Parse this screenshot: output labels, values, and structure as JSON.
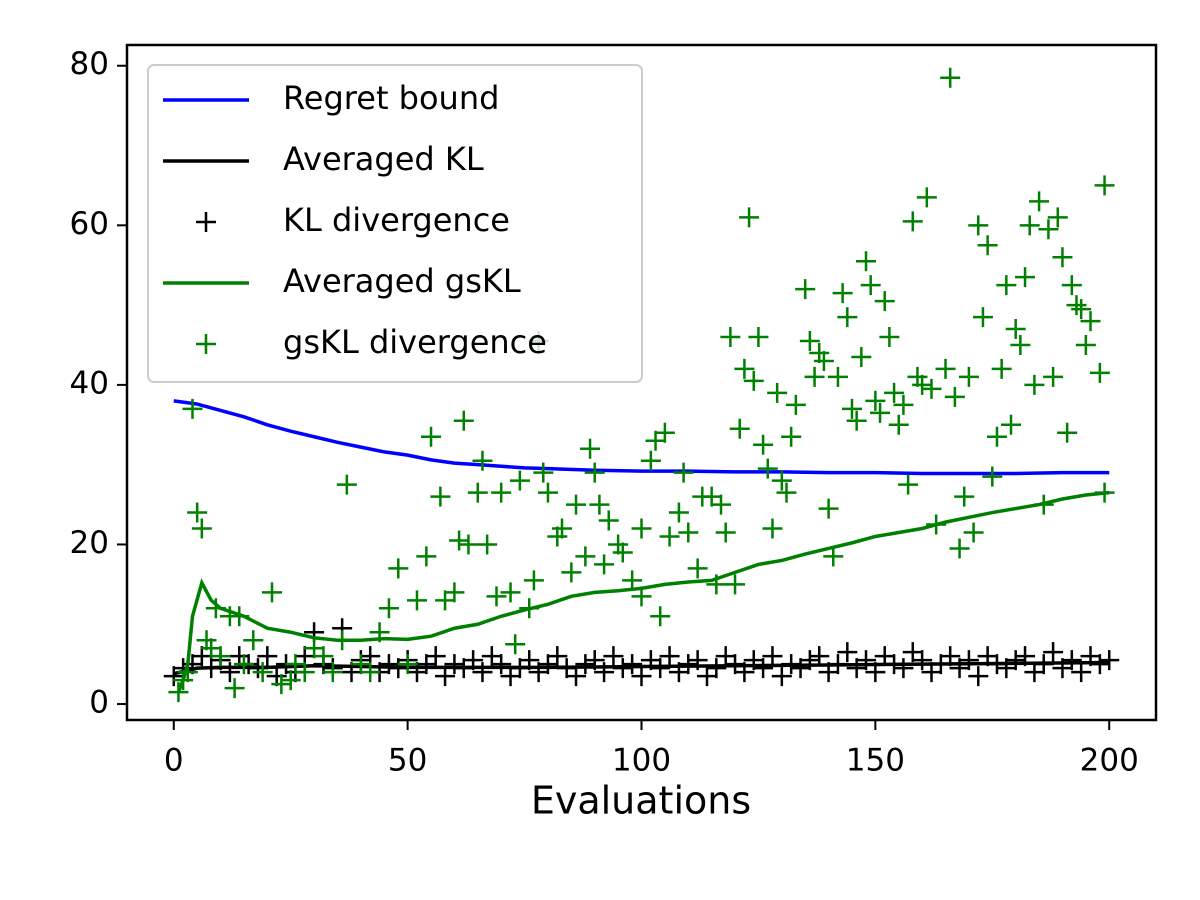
{
  "chart_data": {
    "type": "line",
    "x_label": "Evaluations",
    "xlim": [
      -10,
      210
    ],
    "ylim": [
      -2,
      82.6
    ],
    "xticks": [
      0,
      50,
      100,
      150,
      200
    ],
    "yticks": [
      0,
      20,
      40,
      60,
      80
    ],
    "grid": false,
    "legend": "upper left",
    "series": [
      {
        "name": "Regret bound",
        "type": "line",
        "color": "#0000ff",
        "x": [
          0,
          5,
          10,
          15,
          20,
          25,
          30,
          35,
          40,
          45,
          50,
          55,
          60,
          65,
          70,
          75,
          80,
          90,
          100,
          110,
          120,
          130,
          140,
          150,
          160,
          170,
          180,
          190,
          200
        ],
        "values": [
          38,
          37.6,
          36.8,
          36,
          35,
          34.2,
          33.5,
          32.8,
          32.2,
          31.6,
          31.2,
          30.6,
          30.2,
          30,
          29.8,
          29.6,
          29.5,
          29.3,
          29.2,
          29.2,
          29.1,
          29.1,
          29,
          29,
          28.9,
          28.9,
          28.9,
          29,
          29
        ]
      },
      {
        "name": "Averaged KL",
        "type": "line",
        "color": "#000000",
        "x": [
          0,
          5,
          10,
          20,
          30,
          40,
          50,
          60,
          80,
          100,
          120,
          140,
          160,
          180,
          200
        ],
        "values": [
          3.8,
          4.5,
          4.6,
          4.6,
          4.8,
          4.7,
          4.6,
          4.6,
          4.6,
          4.7,
          4.8,
          4.9,
          5,
          5.1,
          5.2
        ]
      },
      {
        "name": "KL divergence",
        "type": "scatter",
        "color": "#000000",
        "x": [
          0,
          2,
          4,
          6,
          8,
          10,
          12,
          14,
          16,
          18,
          20,
          22,
          24,
          26,
          28,
          30,
          32,
          34,
          36,
          38,
          40,
          42,
          44,
          46,
          48,
          50,
          52,
          54,
          56,
          58,
          60,
          62,
          64,
          66,
          68,
          70,
          72,
          74,
          76,
          78,
          80,
          82,
          84,
          86,
          88,
          90,
          92,
          94,
          96,
          98,
          100,
          102,
          104,
          106,
          108,
          110,
          112,
          114,
          116,
          118,
          120,
          122,
          124,
          126,
          128,
          130,
          132,
          134,
          136,
          138,
          140,
          142,
          144,
          146,
          148,
          150,
          152,
          154,
          156,
          158,
          160,
          162,
          164,
          166,
          168,
          170,
          172,
          174,
          176,
          178,
          180,
          182,
          184,
          186,
          188,
          190,
          192,
          194,
          196,
          198,
          200
        ],
        "values": [
          3.5,
          4.5,
          5,
          6,
          4.5,
          5.5,
          4,
          6,
          5,
          4.5,
          6,
          3.5,
          5,
          4,
          6,
          9,
          5,
          4.5,
          9.5,
          4,
          5.5,
          6,
          4,
          5,
          4.5,
          5.5,
          4,
          5,
          6,
          3.5,
          5,
          4.5,
          5.5,
          4,
          6,
          5,
          3.5,
          4.5,
          5.5,
          4,
          5,
          6,
          4.5,
          3.5,
          5,
          5.5,
          4,
          6,
          4.5,
          5,
          3.5,
          5.5,
          4.5,
          6,
          4,
          5,
          5.5,
          3.5,
          4.5,
          6,
          5,
          4,
          5.5,
          4.5,
          6,
          3.5,
          5,
          4.5,
          5.5,
          6,
          4,
          5,
          6.5,
          4.5,
          5.5,
          4,
          6,
          5,
          4.5,
          6.5,
          5.5,
          4,
          5,
          6,
          4.5,
          5.5,
          3.5,
          6,
          5,
          4.5,
          5.5,
          6,
          4,
          5,
          6.5,
          4.5,
          5.5,
          4,
          6,
          5,
          5.5
        ]
      },
      {
        "name": "Averaged gsKL",
        "type": "line",
        "color": "#008000",
        "x": [
          1,
          2,
          3,
          4,
          6,
          8,
          10,
          15,
          20,
          25,
          30,
          35,
          40,
          45,
          50,
          55,
          60,
          65,
          70,
          75,
          80,
          85,
          90,
          95,
          100,
          105,
          110,
          115,
          120,
          125,
          130,
          135,
          140,
          145,
          150,
          155,
          160,
          165,
          170,
          175,
          180,
          185,
          190,
          195,
          200
        ],
        "values": [
          1.5,
          3,
          5,
          11,
          15.2,
          13,
          12,
          11,
          9.5,
          9,
          8.3,
          8,
          8,
          8.2,
          8.1,
          8.5,
          9.5,
          10,
          11,
          11.8,
          12.5,
          13.5,
          14,
          14.2,
          14.5,
          15,
          15.3,
          15.5,
          16.5,
          17.5,
          18,
          18.8,
          19.5,
          20.2,
          21,
          21.5,
          22,
          22.8,
          23.4,
          24,
          24.5,
          25,
          25.7,
          26.2,
          26.5
        ]
      },
      {
        "name": "gsKL divergence",
        "type": "scatter",
        "color": "#008000",
        "x": [
          1,
          2,
          3,
          4,
          5,
          6,
          7,
          8,
          9,
          10,
          12,
          13,
          14,
          15,
          17,
          19,
          21,
          23,
          25,
          26,
          28,
          30,
          32,
          34,
          36,
          37,
          40,
          42,
          44,
          46,
          48,
          50,
          52,
          54,
          55,
          57,
          58,
          60,
          61,
          62,
          63,
          65,
          66,
          67,
          69,
          70,
          72,
          73,
          74,
          76,
          77,
          78,
          79,
          80,
          82,
          83,
          85,
          86,
          88,
          89,
          90,
          91,
          92,
          93,
          95,
          96,
          98,
          100,
          100,
          102,
          103,
          104,
          105,
          106,
          108,
          109,
          110,
          112,
          113,
          115,
          116,
          117,
          118,
          119,
          120,
          121,
          122,
          123,
          124,
          125,
          126,
          127,
          128,
          129,
          130,
          131,
          132,
          133,
          135,
          136,
          137,
          138,
          139,
          140,
          141,
          142,
          143,
          144,
          145,
          146,
          147,
          148,
          149,
          150,
          151,
          152,
          153,
          154,
          155,
          156,
          157,
          158,
          159,
          160,
          161,
          162,
          163,
          166,
          165,
          167,
          168,
          169,
          170,
          171,
          172,
          173,
          174,
          175,
          176,
          177,
          178,
          179,
          180,
          181,
          182,
          183,
          184,
          185,
          186,
          187,
          188,
          189,
          190,
          191,
          192,
          193,
          194,
          195,
          196,
          198,
          199,
          199
        ],
        "values": [
          1.5,
          3,
          4,
          37,
          24,
          22,
          8,
          7,
          12,
          6,
          11,
          2,
          11,
          5,
          8,
          4,
          14,
          2.5,
          3,
          5,
          4,
          7,
          6,
          4,
          8,
          27.5,
          5,
          4,
          9,
          12,
          17,
          5,
          13,
          18.5,
          33.5,
          26,
          13,
          14,
          20.5,
          35.5,
          20,
          26.5,
          30.5,
          20,
          13.5,
          26.5,
          14,
          7.5,
          28,
          12,
          15.5,
          45.5,
          29,
          26.5,
          21,
          22,
          16.5,
          25,
          18.5,
          32,
          29,
          25,
          17.5,
          23,
          20,
          19,
          15.5,
          13.5,
          22,
          30.5,
          33,
          11,
          34,
          21,
          24,
          29,
          21.5,
          17,
          26,
          26,
          15,
          25,
          21.5,
          46,
          15,
          34.5,
          42,
          61,
          40.5,
          46,
          32.5,
          29.5,
          22,
          39,
          28,
          26.5,
          33.5,
          37.5,
          52,
          45.5,
          41,
          44,
          43,
          24.5,
          18.5,
          41,
          51.5,
          48.5,
          37,
          35.5,
          43.5,
          55.5,
          52.5,
          38,
          36.5,
          50.5,
          46,
          39,
          35,
          37.5,
          27.5,
          60.5,
          41,
          40,
          63.5,
          39.5,
          22.5,
          78.5,
          42,
          38.5,
          19.5,
          26,
          41,
          21.5,
          60,
          48.5,
          57.5,
          28.5,
          33.5,
          42,
          52.5,
          35,
          47,
          45,
          53.5,
          60,
          40,
          63,
          25,
          59.5,
          41,
          61,
          56,
          34,
          52.5,
          50,
          49.5,
          45,
          48,
          41.5,
          65,
          26.5
        ]
      }
    ]
  }
}
